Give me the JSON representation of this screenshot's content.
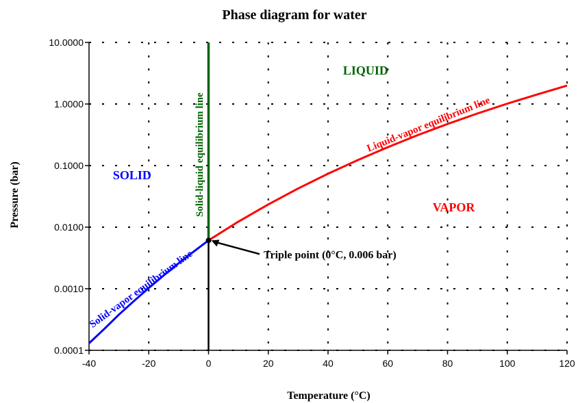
{
  "chart_data": {
    "type": "line",
    "title": "Phase diagram for water",
    "xlabel": "Temperature (°C)",
    "ylabel": "Pressure (bar)",
    "xlim": [
      -40,
      120
    ],
    "ylim": [
      0.0001,
      10
    ],
    "y_scale": "log",
    "grid": true,
    "x_ticks": [
      -40,
      -20,
      0,
      20,
      40,
      60,
      80,
      100,
      120
    ],
    "x_tick_labels": [
      "-40",
      "-20",
      "0",
      "20",
      "40",
      "60",
      "80",
      "100",
      "120"
    ],
    "y_ticks": [
      0.0001,
      0.001,
      0.01,
      0.1,
      1,
      10
    ],
    "y_tick_labels": [
      "0.0001",
      "0.0010",
      "0.0100",
      "0.1000",
      "1.0000",
      "10.0000"
    ],
    "series": [
      {
        "name": "Solid-vapor equilibrium line",
        "color": "#0000ff",
        "x": [
          -40,
          -35,
          -30,
          -25,
          -20,
          -15,
          -10,
          -5,
          0
        ],
        "y": [
          0.00013,
          0.00022,
          0.00038,
          0.00063,
          0.00103,
          0.00165,
          0.0026,
          0.004,
          0.0061
        ]
      },
      {
        "name": "Liquid-vapor equilibrium line",
        "color": "#ff0000",
        "x": [
          0,
          10,
          20,
          30,
          40,
          50,
          60,
          70,
          80,
          90,
          100,
          110,
          120
        ],
        "y": [
          0.0061,
          0.0123,
          0.0234,
          0.0425,
          0.0738,
          0.123,
          0.199,
          0.312,
          0.474,
          0.701,
          1.013,
          1.43,
          1.99
        ]
      },
      {
        "name": "Solid-liquid equilibrium line",
        "color": "#006400",
        "x": [
          0,
          0
        ],
        "y": [
          0.0061,
          10
        ]
      }
    ],
    "regions": [
      {
        "label": "SOLID",
        "x": -32,
        "y": 0.06,
        "color": "#0000ff"
      },
      {
        "label": "LIQUID",
        "x": 45,
        "y": 3.0,
        "color": "#006400"
      },
      {
        "label": "VAPOR",
        "x": 75,
        "y": 0.018,
        "color": "#ff0000"
      }
    ],
    "annotations": [
      {
        "text": "Triple point (0°C, 0.006 bar)",
        "x": 0,
        "y": 0.0061
      }
    ],
    "triple_point": {
      "x": 0,
      "y": 0.0061
    },
    "colors": {
      "solid": "#0000ff",
      "liquid": "#006400",
      "vapor": "#ff0000",
      "axis": "#000000"
    }
  }
}
